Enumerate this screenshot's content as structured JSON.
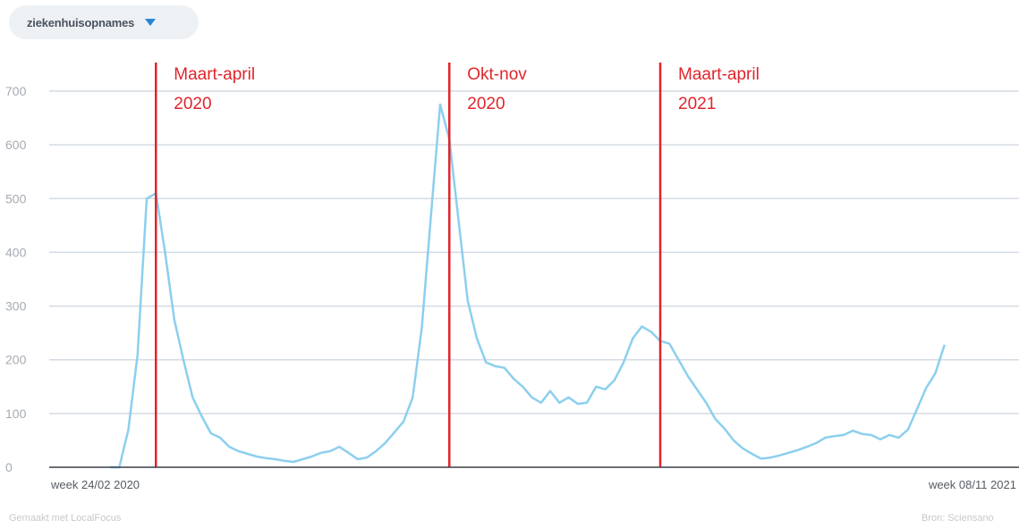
{
  "selector": {
    "label": "ziekenhuisopnames",
    "icon": "caret-down-icon"
  },
  "footer": {
    "credit": "Gemaakt met LocalFocus",
    "source": "Bron: Sciensano"
  },
  "colors": {
    "line": "#8ccfee",
    "marker": "#e0252b",
    "grid": "#d4dbe3",
    "tick": "#a5abb3",
    "xtick": "#555b63",
    "caret": "#2a86d6"
  },
  "chart_data": {
    "type": "line",
    "title": "",
    "xlabel": "",
    "ylabel": "",
    "ylim": [
      0,
      700
    ],
    "yticks": [
      0,
      100,
      200,
      300,
      400,
      500,
      600,
      700
    ],
    "x_start_label": "week 24/02 2020",
    "x_end_label": "week 08/11 2021",
    "grid": true,
    "series": [
      {
        "values": [
          0,
          0,
          70,
          210,
          500,
          510,
          400,
          275,
          200,
          130,
          95,
          63,
          55,
          38,
          30,
          25,
          20,
          17,
          15,
          12,
          10,
          15,
          20,
          27,
          30,
          38,
          27,
          15,
          18,
          30,
          45,
          65,
          85,
          130,
          260,
          470,
          675,
          610,
          460,
          310,
          240,
          195,
          188,
          185,
          165,
          150,
          130,
          120,
          142,
          120,
          130,
          118,
          120,
          150,
          145,
          162,
          195,
          240,
          262,
          252,
          235,
          230,
          200,
          170,
          145,
          120,
          90,
          72,
          50,
          35,
          25,
          16,
          18,
          22,
          27,
          32,
          38,
          45,
          55,
          58,
          60,
          68,
          62,
          60,
          52,
          60,
          55,
          70,
          108,
          148,
          175,
          228
        ]
      }
    ],
    "annotations": [
      {
        "index": 5,
        "line1": "Maart-april",
        "line2": "2020"
      },
      {
        "index": 37,
        "line1": "Okt-nov",
        "line2": "2020"
      },
      {
        "index": 60,
        "line1": "Maart-april",
        "line2": "2021"
      }
    ]
  }
}
